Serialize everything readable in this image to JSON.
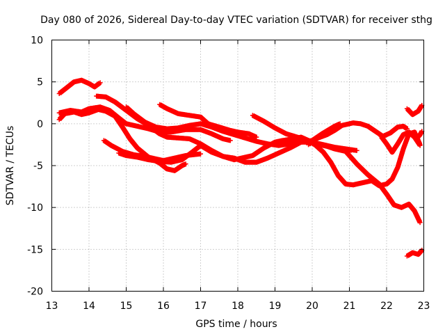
{
  "chart_data": {
    "type": "scatter",
    "title": "Day 080 of 2026, Sidereal Day-to-day VTEC variation (SDTVAR) for receiver sthg",
    "xlabel": "GPS time / hours",
    "ylabel": "SDTVAR / TECUs",
    "xlim": [
      13,
      23
    ],
    "ylim": [
      -20,
      10
    ],
    "xticks": [
      "13",
      "14",
      "15",
      "16",
      "17",
      "18",
      "19",
      "20",
      "21",
      "22",
      "23"
    ],
    "yticks": [
      "10",
      "5",
      "0",
      "-5",
      "-10",
      "-15",
      "-20"
    ],
    "grid": true,
    "marker": "plus",
    "color": "#ff0000",
    "series": [
      {
        "name": "s1",
        "points": [
          [
            13.2,
            3.6
          ],
          [
            13.4,
            4.3
          ],
          [
            13.6,
            5.0
          ],
          [
            13.8,
            5.2
          ],
          [
            14.0,
            4.8
          ],
          [
            14.15,
            4.4
          ],
          [
            14.3,
            4.9
          ]
        ]
      },
      {
        "name": "s2",
        "points": [
          [
            13.2,
            0.5
          ],
          [
            13.35,
            1.2
          ],
          [
            13.6,
            1.4
          ],
          [
            13.8,
            1.1
          ],
          [
            14.0,
            1.3
          ],
          [
            14.25,
            1.7
          ],
          [
            14.45,
            1.5
          ],
          [
            14.7,
            0.9
          ],
          [
            14.9,
            -0.4
          ],
          [
            15.1,
            -1.8
          ],
          [
            15.3,
            -2.9
          ],
          [
            15.6,
            -4.0
          ],
          [
            15.9,
            -4.7
          ],
          [
            16.1,
            -5.4
          ],
          [
            16.3,
            -5.6
          ],
          [
            16.5,
            -5.0
          ],
          [
            16.6,
            -4.8
          ]
        ]
      },
      {
        "name": "s3",
        "points": [
          [
            13.2,
            1.3
          ],
          [
            13.5,
            1.6
          ],
          [
            13.8,
            1.4
          ],
          [
            14.0,
            1.8
          ],
          [
            14.3,
            2.0
          ],
          [
            14.55,
            1.6
          ],
          [
            14.8,
            0.7
          ],
          [
            15.0,
            0.0
          ],
          [
            15.3,
            -0.3
          ],
          [
            15.6,
            -0.6
          ],
          [
            15.9,
            -1.0
          ],
          [
            16.2,
            -1.0
          ],
          [
            16.6,
            -0.7
          ],
          [
            17.0,
            -0.7
          ],
          [
            17.3,
            -1.2
          ],
          [
            17.6,
            -1.8
          ],
          [
            17.8,
            -2.0
          ]
        ]
      },
      {
        "name": "s4",
        "points": [
          [
            14.2,
            3.3
          ],
          [
            14.45,
            3.2
          ],
          [
            14.7,
            2.6
          ],
          [
            15.0,
            1.6
          ],
          [
            15.3,
            0.6
          ],
          [
            15.6,
            -0.2
          ],
          [
            15.9,
            -1.2
          ],
          [
            16.1,
            -1.6
          ],
          [
            16.4,
            -1.7
          ],
          [
            16.7,
            -1.8
          ],
          [
            17.0,
            -2.4
          ],
          [
            17.3,
            -3.2
          ],
          [
            17.6,
            -3.9
          ],
          [
            17.9,
            -4.3
          ],
          [
            18.1,
            -4.1
          ],
          [
            18.4,
            -3.8
          ],
          [
            18.7,
            -2.9
          ],
          [
            19.0,
            -2.2
          ],
          [
            19.2,
            -2.0
          ],
          [
            19.5,
            -1.8
          ],
          [
            19.7,
            -1.6
          ],
          [
            20.0,
            -2.2
          ],
          [
            20.2,
            -2.5
          ],
          [
            20.4,
            -2.7
          ],
          [
            20.6,
            -3.0
          ],
          [
            20.8,
            -3.2
          ],
          [
            21.0,
            -3.4
          ]
        ]
      },
      {
        "name": "s5",
        "points": [
          [
            14.4,
            -2.0
          ],
          [
            14.6,
            -2.6
          ],
          [
            14.9,
            -3.3
          ],
          [
            15.2,
            -3.7
          ],
          [
            15.5,
            -3.9
          ],
          [
            15.8,
            -4.2
          ],
          [
            16.0,
            -4.4
          ],
          [
            16.3,
            -4.1
          ],
          [
            16.6,
            -3.8
          ],
          [
            17.0,
            -3.6
          ]
        ]
      },
      {
        "name": "s6",
        "points": [
          [
            14.8,
            -3.5
          ],
          [
            15.0,
            -3.8
          ],
          [
            15.3,
            -4.0
          ],
          [
            15.6,
            -4.3
          ],
          [
            15.9,
            -4.5
          ],
          [
            16.2,
            -4.6
          ],
          [
            16.5,
            -4.3
          ],
          [
            16.8,
            -3.3
          ],
          [
            17.0,
            -2.6
          ],
          [
            17.3,
            -3.4
          ],
          [
            17.6,
            -3.9
          ],
          [
            17.9,
            -4.1
          ],
          [
            18.2,
            -4.6
          ],
          [
            18.5,
            -4.6
          ],
          [
            18.8,
            -4.1
          ],
          [
            19.1,
            -3.5
          ],
          [
            19.4,
            -2.9
          ],
          [
            19.7,
            -2.2
          ],
          [
            20.0,
            -2.0
          ],
          [
            20.3,
            -1.1
          ],
          [
            20.6,
            -0.3
          ],
          [
            20.75,
            0.0
          ]
        ]
      },
      {
        "name": "s7",
        "points": [
          [
            15.0,
            2.0
          ],
          [
            15.2,
            1.2
          ],
          [
            15.5,
            0.2
          ],
          [
            15.8,
            -0.4
          ],
          [
            16.1,
            -0.6
          ],
          [
            16.4,
            -0.5
          ],
          [
            16.7,
            -0.2
          ],
          [
            17.0,
            0.0
          ],
          [
            17.3,
            -0.4
          ],
          [
            17.6,
            -0.9
          ],
          [
            17.9,
            -1.3
          ],
          [
            18.2,
            -1.7
          ],
          [
            18.5,
            -2.1
          ],
          [
            18.8,
            -2.4
          ],
          [
            19.1,
            -2.6
          ],
          [
            19.4,
            -2.4
          ],
          [
            19.7,
            -2.2
          ],
          [
            20.0,
            -2.2
          ],
          [
            20.3,
            -2.5
          ],
          [
            20.6,
            -2.8
          ],
          [
            20.9,
            -3.0
          ],
          [
            21.2,
            -3.2
          ]
        ]
      },
      {
        "name": "s8",
        "points": [
          [
            15.9,
            2.3
          ],
          [
            16.1,
            1.8
          ],
          [
            16.4,
            1.2
          ],
          [
            16.7,
            1.0
          ],
          [
            17.0,
            0.8
          ],
          [
            17.2,
            0.0
          ],
          [
            17.5,
            -0.4
          ],
          [
            17.8,
            -0.8
          ],
          [
            18.0,
            -1.0
          ],
          [
            18.3,
            -1.2
          ],
          [
            18.5,
            -1.6
          ]
        ]
      },
      {
        "name": "s9",
        "points": [
          [
            18.4,
            1.0
          ],
          [
            18.7,
            0.3
          ],
          [
            19.0,
            -0.5
          ],
          [
            19.3,
            -1.2
          ],
          [
            19.6,
            -1.6
          ],
          [
            19.9,
            -2.0
          ],
          [
            20.1,
            -2.6
          ],
          [
            20.3,
            -3.4
          ],
          [
            20.5,
            -4.6
          ],
          [
            20.7,
            -6.2
          ],
          [
            20.9,
            -7.2
          ],
          [
            21.1,
            -7.3
          ],
          [
            21.4,
            -7.0
          ],
          [
            21.6,
            -6.8
          ],
          [
            21.8,
            -7.4
          ],
          [
            22.0,
            -7.2
          ],
          [
            22.15,
            -6.6
          ],
          [
            22.3,
            -5.2
          ],
          [
            22.45,
            -3.0
          ],
          [
            22.6,
            -1.2
          ],
          [
            22.75,
            -1.0
          ],
          [
            22.9,
            -2.5
          ]
        ]
      },
      {
        "name": "s10",
        "points": [
          [
            19.9,
            -2.5
          ],
          [
            20.1,
            -1.8
          ],
          [
            20.4,
            -1.3
          ],
          [
            20.6,
            -0.8
          ],
          [
            20.8,
            -0.2
          ],
          [
            21.1,
            0.1
          ],
          [
            21.3,
            0.0
          ],
          [
            21.5,
            -0.3
          ],
          [
            21.7,
            -0.9
          ],
          [
            21.9,
            -1.5
          ],
          [
            22.1,
            -1.1
          ],
          [
            22.3,
            -0.4
          ],
          [
            22.45,
            -0.3
          ],
          [
            22.55,
            -0.6
          ]
        ]
      },
      {
        "name": "s11",
        "points": [
          [
            20.9,
            -3.3
          ],
          [
            21.2,
            -4.8
          ],
          [
            21.5,
            -6.1
          ],
          [
            21.8,
            -7.2
          ],
          [
            22.0,
            -8.4
          ],
          [
            22.2,
            -9.7
          ],
          [
            22.4,
            -10.0
          ],
          [
            22.6,
            -9.6
          ],
          [
            22.75,
            -10.4
          ],
          [
            22.9,
            -11.8
          ]
        ]
      },
      {
        "name": "s12",
        "points": [
          [
            21.85,
            -1.5
          ],
          [
            22.0,
            -2.4
          ],
          [
            22.15,
            -3.4
          ],
          [
            22.3,
            -2.4
          ],
          [
            22.45,
            -1.3
          ],
          [
            22.6,
            -1.0
          ],
          [
            22.75,
            -1.6
          ],
          [
            22.9,
            -2.6
          ]
        ]
      },
      {
        "name": "s13",
        "points": [
          [
            22.55,
            1.8
          ],
          [
            22.7,
            1.1
          ],
          [
            22.85,
            1.5
          ],
          [
            22.95,
            2.2
          ]
        ]
      },
      {
        "name": "s14",
        "points": [
          [
            22.55,
            -15.8
          ],
          [
            22.7,
            -15.4
          ],
          [
            22.85,
            -15.6
          ],
          [
            22.95,
            -15.1
          ]
        ]
      },
      {
        "name": "s15",
        "points": [
          [
            22.8,
            -1.8
          ],
          [
            22.9,
            -1.3
          ],
          [
            22.95,
            -0.9
          ]
        ]
      }
    ]
  }
}
